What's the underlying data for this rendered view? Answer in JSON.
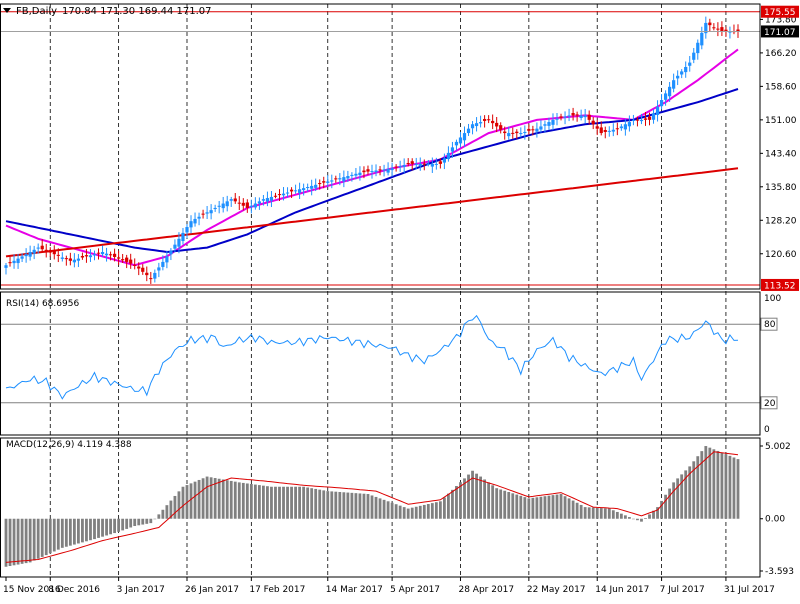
{
  "window": {
    "symbol_label": "FB,Daily",
    "ohlc_readout": "170.84 171.30 169.44 171.07"
  },
  "colors": {
    "background": "#ffffff",
    "grid": "#000000",
    "candle_up": "#1e90ff",
    "candle_down": "#dc0000",
    "ma_fast": "#e600e6",
    "ma_mid": "#0000c8",
    "ma_slow": "#dc0000",
    "rsi_line": "#1e90ff",
    "macd_hist": "#808080",
    "macd_signal": "#dc0000",
    "price_tag_red": "#dc0000",
    "price_tag_black": "#000000"
  },
  "chart_data": [
    {
      "type": "candlestick",
      "panel": "price",
      "date_axis_labels": [
        "15 Nov 2016",
        "8 Dec 2016",
        "3 Jan 2017",
        "26 Jan 2017",
        "17 Feb 2017",
        "14 Mar 2017",
        "5 Apr 2017",
        "28 Apr 2017",
        "22 May 2017",
        "14 Jun 2017",
        "7 Jul 2017",
        "31 Jul 2017"
      ],
      "y_ticks": [
        "173.80",
        "166.20",
        "158.60",
        "151.00",
        "143.40",
        "135.80",
        "128.20",
        "120.60"
      ],
      "ylim": [
        112.6,
        177.3
      ],
      "price_tags": {
        "high_line": "175.55",
        "current": "171.07",
        "low_line": "113.52"
      },
      "ohlc_keyframes": [
        [
          0,
          118
        ],
        [
          8,
          122
        ],
        [
          16,
          119
        ],
        [
          24,
          121
        ],
        [
          32,
          118
        ],
        [
          36,
          115
        ],
        [
          40,
          120
        ],
        [
          46,
          128
        ],
        [
          52,
          131
        ],
        [
          56,
          133
        ],
        [
          60,
          131
        ],
        [
          64,
          133
        ],
        [
          72,
          135
        ],
        [
          80,
          137
        ],
        [
          88,
          139
        ],
        [
          96,
          140
        ],
        [
          100,
          141
        ],
        [
          104,
          141
        ],
        [
          108,
          141
        ],
        [
          112,
          146
        ],
        [
          116,
          150
        ],
        [
          120,
          151
        ],
        [
          124,
          148
        ],
        [
          128,
          148
        ],
        [
          132,
          149
        ],
        [
          136,
          151
        ],
        [
          140,
          152
        ],
        [
          144,
          152
        ],
        [
          148,
          148
        ],
        [
          152,
          149
        ],
        [
          156,
          151
        ],
        [
          160,
          151
        ],
        [
          166,
          160
        ],
        [
          170,
          164
        ],
        [
          174,
          173
        ],
        [
          178,
          171
        ],
        [
          182,
          171.07
        ]
      ],
      "series": [
        {
          "name": "",
          "kind": "ma_fast",
          "keyframes": [
            [
              0,
              127
            ],
            [
              8,
              124
            ],
            [
              16,
              122
            ],
            [
              24,
              120
            ],
            [
              32,
              118
            ],
            [
              40,
              120
            ],
            [
              50,
              126
            ],
            [
              60,
              131
            ],
            [
              72,
              134
            ],
            [
              84,
              137
            ],
            [
              96,
              140
            ],
            [
              108,
              142
            ],
            [
              120,
              148
            ],
            [
              132,
              151
            ],
            [
              144,
              152
            ],
            [
              156,
              151
            ],
            [
              164,
              155
            ],
            [
              172,
              160
            ],
            [
              182,
              167
            ]
          ]
        },
        {
          "name": "",
          "kind": "ma_mid",
          "keyframes": [
            [
              0,
              128
            ],
            [
              8,
              126.5
            ],
            [
              16,
              125
            ],
            [
              24,
              123.5
            ],
            [
              32,
              122
            ],
            [
              40,
              121
            ],
            [
              50,
              122
            ],
            [
              60,
              125
            ],
            [
              72,
              130
            ],
            [
              84,
              134
            ],
            [
              96,
              138
            ],
            [
              108,
              142
            ],
            [
              120,
              145
            ],
            [
              132,
              148
            ],
            [
              144,
              150
            ],
            [
              156,
              151
            ],
            [
              164,
              153
            ],
            [
              172,
              155
            ],
            [
              182,
              158
            ]
          ]
        },
        {
          "name": "",
          "kind": "ma_slow",
          "keyframes": [
            [
              0,
              120
            ],
            [
              182,
              140
            ]
          ]
        }
      ]
    },
    {
      "type": "line",
      "panel": "rsi",
      "label": "RSI(14) 68.6956",
      "y_ticks": [
        "100",
        "80",
        "20",
        "0"
      ],
      "ylim": [
        0,
        100
      ],
      "levels": [
        80,
        20
      ],
      "keyframes": [
        [
          0,
          30
        ],
        [
          6,
          38
        ],
        [
          10,
          36
        ],
        [
          14,
          25
        ],
        [
          18,
          33
        ],
        [
          22,
          40
        ],
        [
          28,
          34
        ],
        [
          32,
          30
        ],
        [
          35,
          29
        ],
        [
          38,
          45
        ],
        [
          42,
          60
        ],
        [
          46,
          68
        ],
        [
          52,
          70
        ],
        [
          54,
          62
        ],
        [
          58,
          68
        ],
        [
          62,
          70
        ],
        [
          66,
          66
        ],
        [
          72,
          66
        ],
        [
          80,
          70
        ],
        [
          88,
          66
        ],
        [
          96,
          62
        ],
        [
          100,
          56
        ],
        [
          104,
          52
        ],
        [
          108,
          60
        ],
        [
          112,
          70
        ],
        [
          116,
          86
        ],
        [
          118,
          82
        ],
        [
          120,
          68
        ],
        [
          124,
          60
        ],
        [
          128,
          45
        ],
        [
          132,
          60
        ],
        [
          136,
          68
        ],
        [
          140,
          55
        ],
        [
          144,
          48
        ],
        [
          148,
          42
        ],
        [
          150,
          44
        ],
        [
          156,
          52
        ],
        [
          158,
          38
        ],
        [
          164,
          68
        ],
        [
          170,
          70
        ],
        [
          174,
          82
        ],
        [
          178,
          68
        ],
        [
          182,
          69
        ]
      ]
    },
    {
      "type": "bar",
      "panel": "macd",
      "label": "MACD(12,26,9) 4.119 4.388",
      "y_ticks": [
        "5.002",
        "0.00",
        "-3.593"
      ],
      "ylim": [
        -3.593,
        5.002
      ],
      "hist_keyframes": [
        [
          0,
          -3.3
        ],
        [
          6,
          -3.0
        ],
        [
          14,
          -2.0
        ],
        [
          22,
          -1.4
        ],
        [
          28,
          -0.9
        ],
        [
          32,
          -0.5
        ],
        [
          36,
          -0.3
        ],
        [
          38,
          0.3
        ],
        [
          44,
          2.2
        ],
        [
          50,
          2.9
        ],
        [
          58,
          2.5
        ],
        [
          66,
          2.2
        ],
        [
          74,
          2.2
        ],
        [
          80,
          1.9
        ],
        [
          90,
          1.7
        ],
        [
          100,
          0.7
        ],
        [
          108,
          1.2
        ],
        [
          116,
          3.3
        ],
        [
          122,
          2.1
        ],
        [
          130,
          1.4
        ],
        [
          138,
          1.7
        ],
        [
          144,
          0.8
        ],
        [
          150,
          0.7
        ],
        [
          156,
          0.0
        ],
        [
          158,
          -0.2
        ],
        [
          162,
          0.8
        ],
        [
          166,
          2.5
        ],
        [
          170,
          3.6
        ],
        [
          174,
          5.0
        ],
        [
          182,
          4.1
        ]
      ],
      "signal_keyframes": [
        [
          0,
          -3.0
        ],
        [
          8,
          -2.8
        ],
        [
          16,
          -2.2
        ],
        [
          24,
          -1.5
        ],
        [
          32,
          -1.0
        ],
        [
          38,
          -0.6
        ],
        [
          44,
          0.9
        ],
        [
          50,
          2.2
        ],
        [
          56,
          2.8
        ],
        [
          64,
          2.6
        ],
        [
          74,
          2.3
        ],
        [
          84,
          2.1
        ],
        [
          92,
          1.9
        ],
        [
          100,
          1.0
        ],
        [
          108,
          1.3
        ],
        [
          116,
          2.8
        ],
        [
          122,
          2.3
        ],
        [
          130,
          1.5
        ],
        [
          138,
          1.8
        ],
        [
          146,
          0.8
        ],
        [
          152,
          0.7
        ],
        [
          158,
          0.2
        ],
        [
          162,
          0.6
        ],
        [
          166,
          1.9
        ],
        [
          170,
          3.1
        ],
        [
          176,
          4.6
        ],
        [
          182,
          4.4
        ]
      ]
    }
  ]
}
